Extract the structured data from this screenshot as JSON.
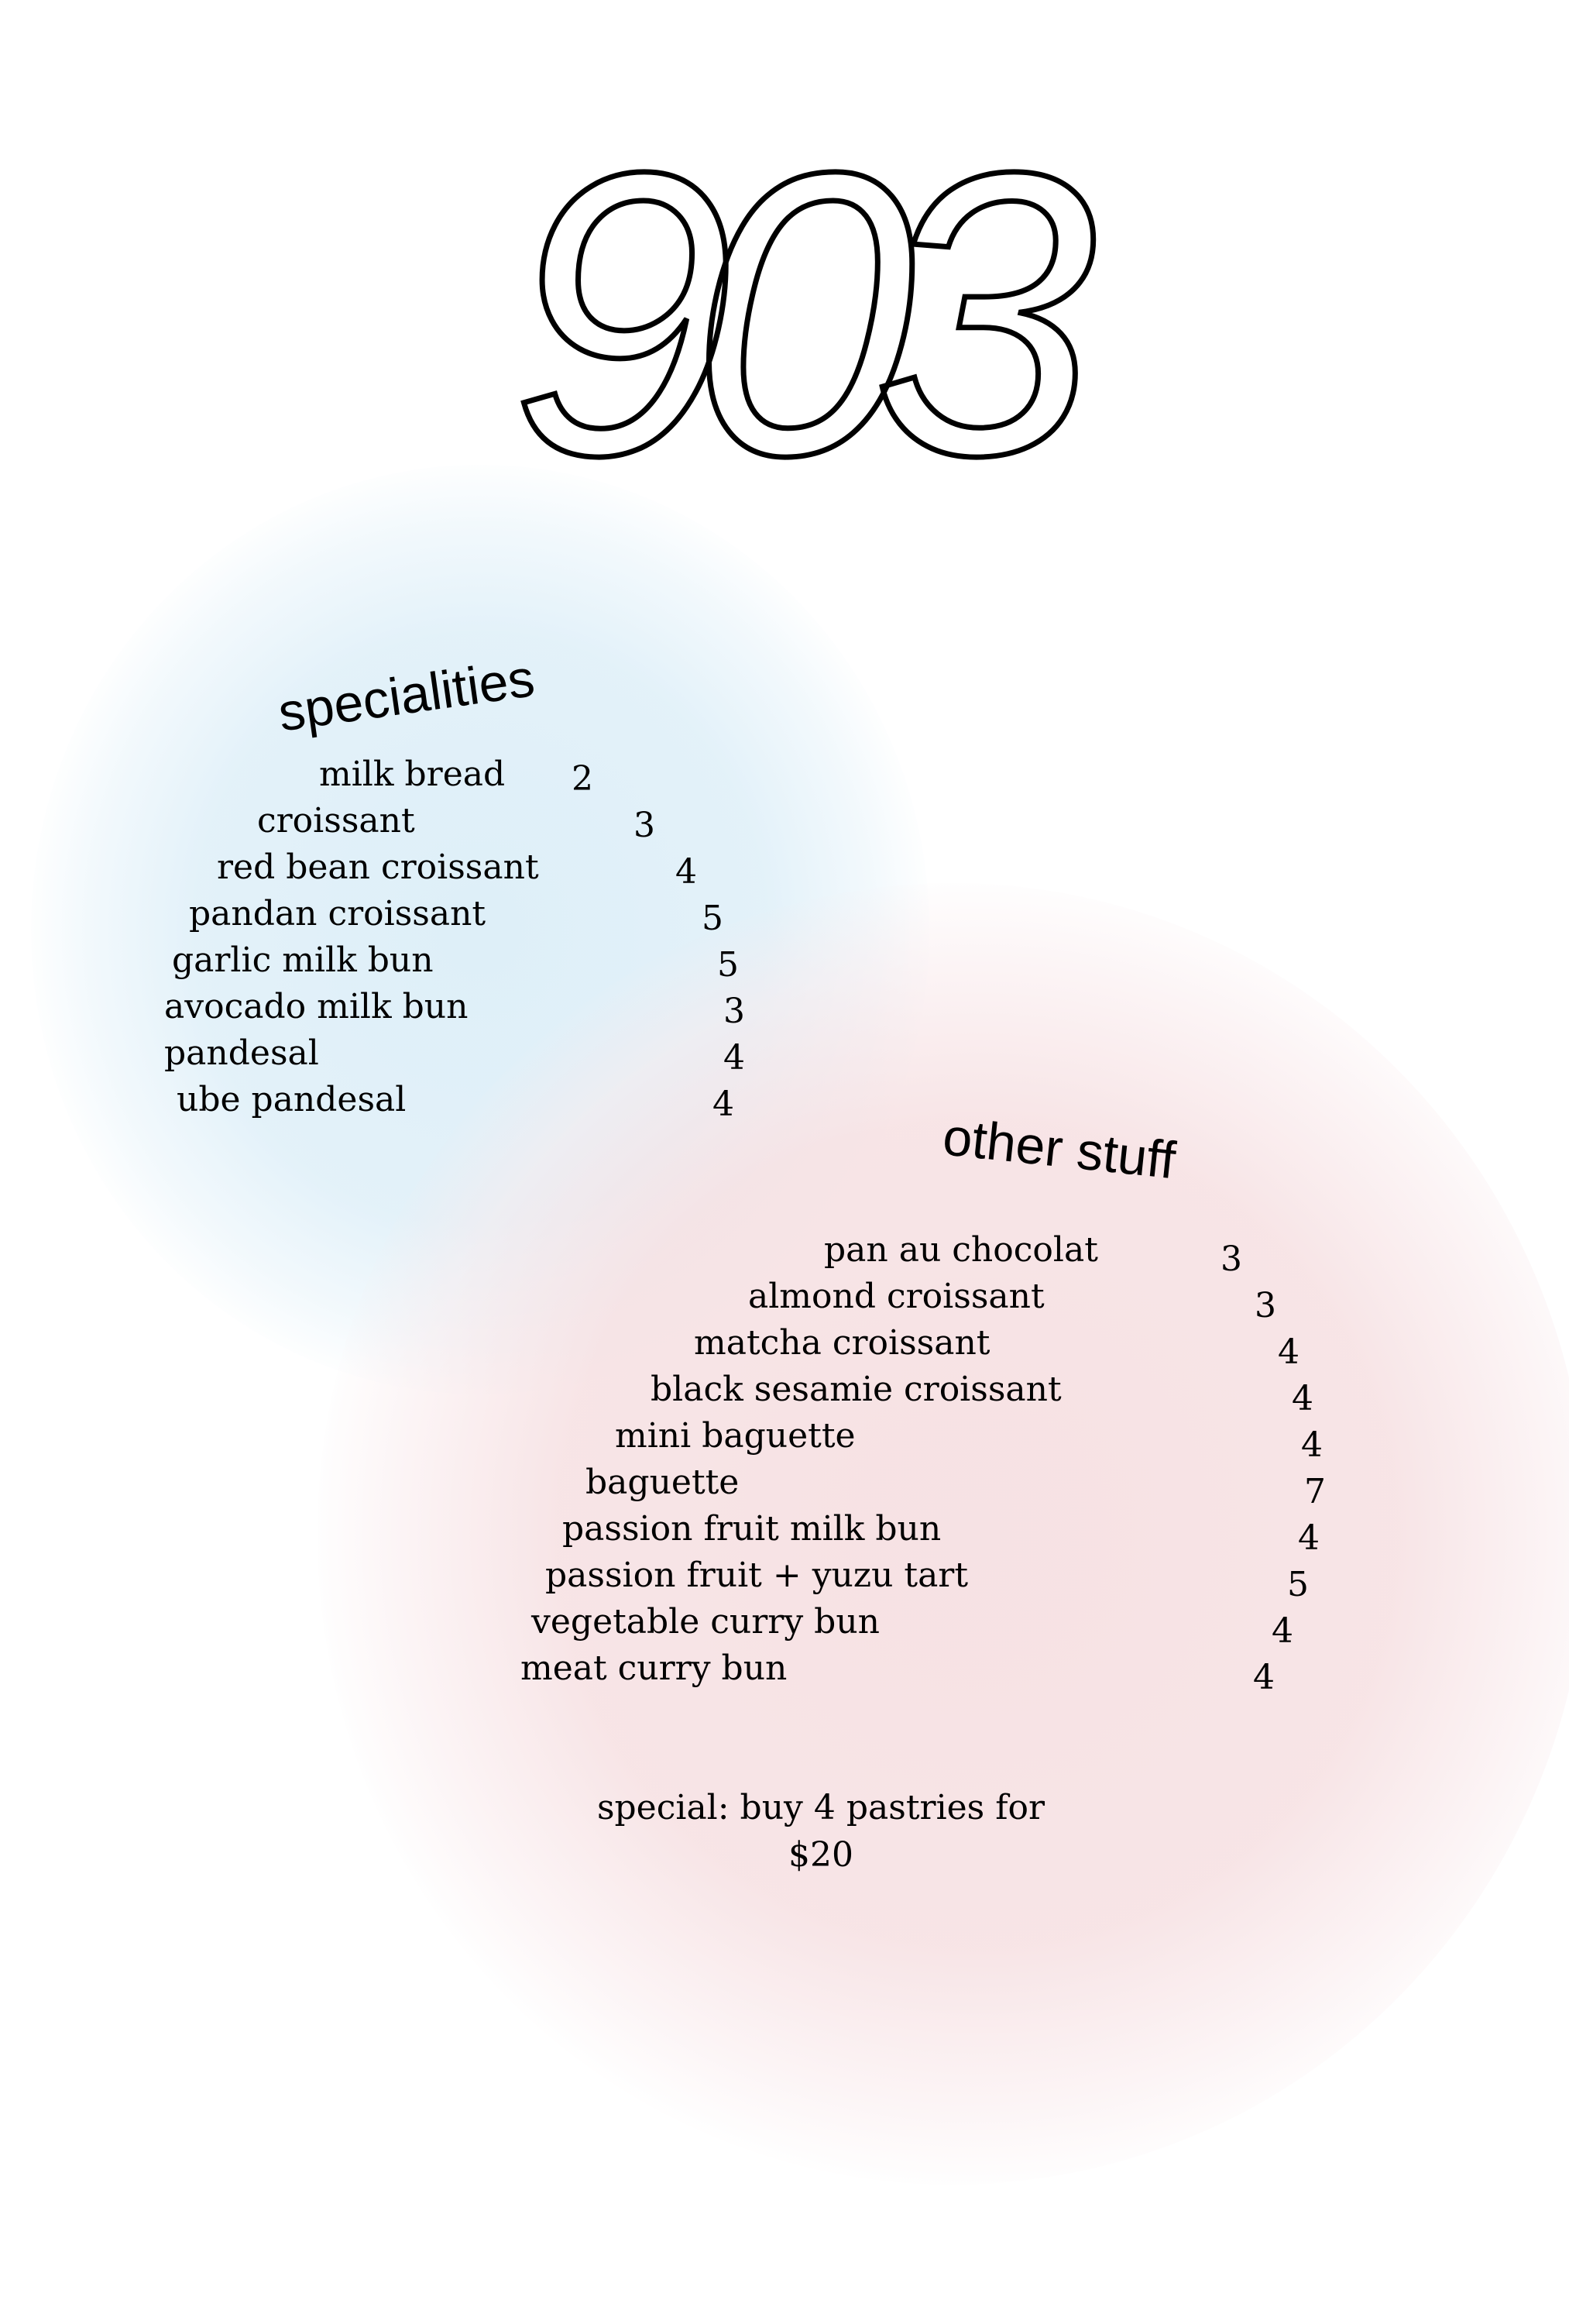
{
  "logo": {
    "text": "903"
  },
  "specialities": {
    "heading": "specialities",
    "items": [
      {
        "name": "milk bread",
        "price": "2"
      },
      {
        "name": "croissant",
        "price": "3"
      },
      {
        "name": "red bean croissant",
        "price": "4"
      },
      {
        "name": "pandan croissant",
        "price": "5"
      },
      {
        "name": "garlic milk bun",
        "price": "5"
      },
      {
        "name": "avocado milk bun",
        "price": "3"
      },
      {
        "name": "pandesal",
        "price": "4"
      },
      {
        "name": "ube pandesal",
        "price": "4"
      }
    ]
  },
  "other_stuff": {
    "heading": "other stuff",
    "items": [
      {
        "name": "pan au chocolat",
        "price": "3"
      },
      {
        "name": "almond croissant",
        "price": "3"
      },
      {
        "name": "matcha croissant",
        "price": "4"
      },
      {
        "name": "black sesamie croissant",
        "price": "4"
      },
      {
        "name": "mini baguette",
        "price": "4"
      },
      {
        "name": "baguette",
        "price": "7"
      },
      {
        "name": "passion fruit milk bun",
        "price": "4"
      },
      {
        "name": "passion fruit + yuzu tart",
        "price": "5"
      },
      {
        "name": "vegetable curry bun",
        "price": "4"
      },
      {
        "name": "meat curry bun",
        "price": "4"
      }
    ]
  },
  "special": {
    "line1": "special: buy 4 pastries for",
    "line2": "$20"
  },
  "colors": {
    "blue_blob": "#deeff8",
    "pink_blob": "#f6e0e2",
    "text": "#000000"
  }
}
